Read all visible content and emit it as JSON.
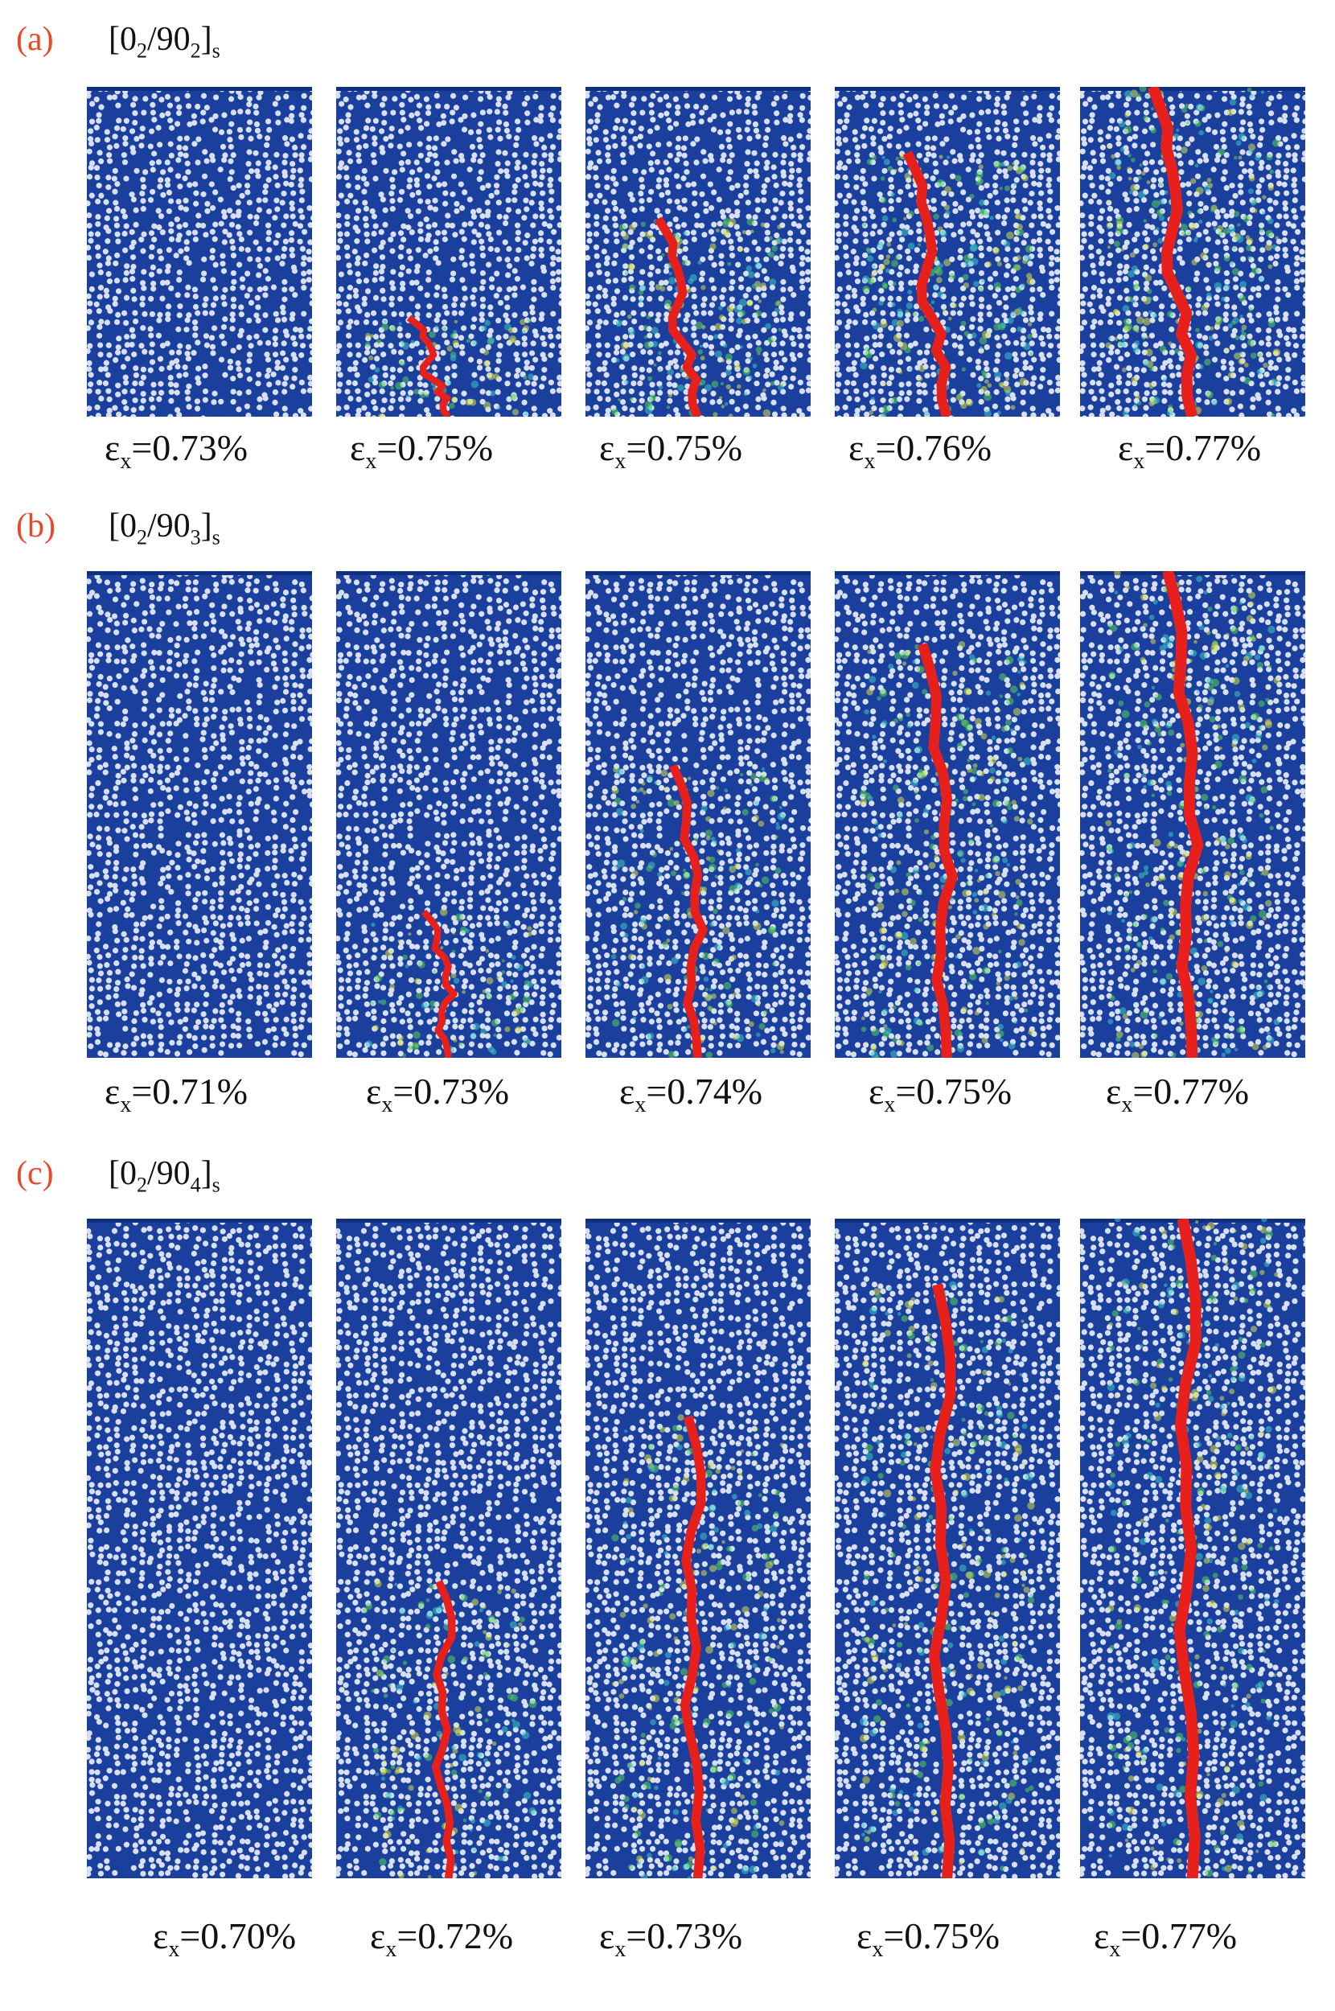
{
  "colors": {
    "matrix": "#1a3f9c",
    "fiber": "#d7dff0",
    "crack": "#e8201c",
    "damage_green": "#57d15a",
    "damage_cyan": "#3fc7c7",
    "damage_yellow": "#d8e04a",
    "panel_label": "#e8492a"
  },
  "panels": [
    {
      "label": "(a)",
      "layup_base": "[0",
      "layup_sub1": "2",
      "layup_mid": "/90",
      "layup_sub2": "2",
      "layup_close": "]",
      "layup_sub3": "s",
      "strain_symbol": "ε",
      "strain_sub": "x",
      "strains": [
        "=0.73%",
        "=0.75%",
        "=0.75%",
        "=0.76%",
        "=0.77%"
      ],
      "crack_progress": [
        0.0,
        0.3,
        0.6,
        0.8,
        1.0
      ]
    },
    {
      "label": "(b)",
      "layup_base": "[0",
      "layup_sub1": "2",
      "layup_mid": "/90",
      "layup_sub2": "3",
      "layup_close": "]",
      "layup_sub3": "s",
      "strain_symbol": "ε",
      "strain_sub": "x",
      "strains": [
        "=0.71%",
        "=0.73%",
        "=0.74%",
        "=0.75%",
        "=0.77%"
      ],
      "crack_progress": [
        0.0,
        0.3,
        0.6,
        0.85,
        1.0
      ]
    },
    {
      "label": "(c)",
      "layup_base": "[0",
      "layup_sub1": "2",
      "layup_mid": "/90",
      "layup_sub2": "4",
      "layup_close": "]",
      "layup_sub3": "s",
      "strain_symbol": "ε",
      "strain_sub": "x",
      "strains": [
        "=0.70%",
        "=0.72%",
        "=0.73%",
        "=0.75%",
        "=0.77%"
      ],
      "crack_progress": [
        0.0,
        0.45,
        0.7,
        0.9,
        1.0
      ]
    }
  ]
}
